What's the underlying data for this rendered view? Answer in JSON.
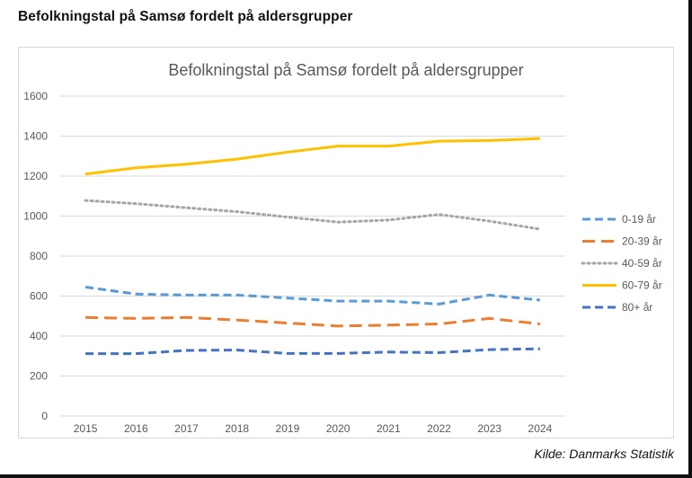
{
  "page": {
    "title": "Befolkningstal på Samsø fordelt på aldersgrupper",
    "source": "Kilde: Danmarks Statistik"
  },
  "chart_data": {
    "type": "line",
    "title": "Befolkningstal på Samsø fordelt på aldersgrupper",
    "xlabel": "",
    "ylabel": "",
    "categories": [
      "2015",
      "2016",
      "2017",
      "2018",
      "2019",
      "2020",
      "2021",
      "2022",
      "2023",
      "2024"
    ],
    "ylim": [
      0,
      1600
    ],
    "yticks": [
      0,
      200,
      400,
      600,
      800,
      1000,
      1200,
      1400,
      1600
    ],
    "grid": true,
    "legend_position": "right",
    "series": [
      {
        "name": "0-19 år",
        "color": "#5b9bd5",
        "style": "dash",
        "values": [
          645,
          610,
          605,
          605,
          590,
          575,
          575,
          560,
          605,
          580
        ]
      },
      {
        "name": "20-39 år",
        "color": "#ed7d31",
        "style": "longdash",
        "values": [
          493,
          488,
          493,
          480,
          465,
          450,
          455,
          460,
          488,
          460
        ]
      },
      {
        "name": "40-59 år",
        "color": "#a5a5a5",
        "style": "dot",
        "values": [
          1078,
          1062,
          1042,
          1022,
          995,
          970,
          980,
          1008,
          975,
          935
        ]
      },
      {
        "name": "60-79 år",
        "color": "#ffc000",
        "style": "solid",
        "values": [
          1210,
          1242,
          1260,
          1285,
          1320,
          1350,
          1350,
          1375,
          1378,
          1388
        ]
      },
      {
        "name": "80+ år",
        "color": "#4472c4",
        "style": "dash",
        "values": [
          312,
          312,
          328,
          330,
          313,
          313,
          320,
          317,
          332,
          336
        ]
      }
    ]
  }
}
